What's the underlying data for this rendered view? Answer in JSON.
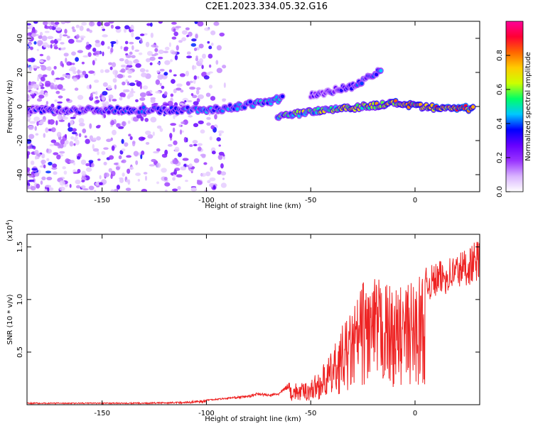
{
  "title": "C2E1.2023.334.05.32.G16",
  "chart_data": [
    {
      "type": "heatmap",
      "xlabel": "Height of straight line (km)",
      "ylabel": "Frequency (Hz)",
      "xlim": [
        -186,
        31
      ],
      "ylim": [
        -50,
        50
      ],
      "x_ticks": [
        -150,
        -100,
        -50,
        0
      ],
      "y_ticks": [
        -40,
        -20,
        0,
        20,
        40
      ],
      "grid": false,
      "colorbar": {
        "label": "Normalized spectral amplitude",
        "range": [
          0,
          1
        ],
        "ticks": [
          "0.0",
          "0.2",
          "0.4",
          "0.6",
          "0.8"
        ],
        "colors": [
          "#ffffff",
          "#d9b3ff",
          "#9933ff",
          "#6600ff",
          "#0000ff",
          "#00c8ff",
          "#00ff66",
          "#ccff00",
          "#ffcc00",
          "#ff6600",
          "#ff0033",
          "#ff0099"
        ]
      },
      "features": [
        {
          "curve": "main",
          "x": [
            -186,
            -140,
            -100,
            -90,
            -80,
            -70,
            -63
          ],
          "y": [
            -2,
            -2,
            -2,
            -1,
            1,
            3,
            5
          ],
          "amplitude": 0.35
        },
        {
          "curve": "lower",
          "x": [
            -66,
            -55,
            -45,
            -35,
            -25,
            -15,
            -8,
            0,
            10,
            20,
            28
          ],
          "y": [
            -6,
            -4,
            -2,
            -1,
            0,
            1,
            2,
            0,
            -1,
            -1,
            -1
          ],
          "amplitude": 0.6
        },
        {
          "curve": "upper",
          "x": [
            -50,
            -40,
            -30,
            -22,
            -16
          ],
          "y": [
            7,
            9,
            12,
            17,
            22
          ],
          "amplitude": 0.3
        }
      ]
    },
    {
      "type": "line",
      "xlabel": "Height of straight line (km)",
      "ylabel": "SNR (10 * v/v)",
      "y_multiplier": "(x10",
      "y_multiplier_exp": "4",
      "y_multiplier_close": ")",
      "xlim": [
        -186,
        31
      ],
      "ylim": [
        0,
        1.62
      ],
      "x_ticks": [
        -150,
        -100,
        -50,
        0
      ],
      "y_ticks": [
        "0.5",
        "1.0",
        "1.5"
      ],
      "grid": false,
      "series": [
        {
          "color": "#ee2222",
          "x": [
            -186,
            -160,
            -130,
            -110,
            -100,
            -90,
            -80,
            -75,
            -70,
            -65,
            -60,
            -55,
            -50,
            -45,
            -40,
            -35,
            -30,
            -25,
            -20,
            -15,
            -10,
            -5,
            0,
            5,
            10,
            15,
            20,
            25,
            31
          ],
          "env": [
            0.02,
            0.02,
            0.02,
            0.03,
            0.05,
            0.07,
            0.09,
            0.12,
            0.1,
            0.12,
            0.22,
            0.2,
            0.24,
            0.35,
            0.5,
            0.75,
            0.9,
            1.2,
            1.2,
            1.2,
            1.1,
            1.15,
            1.2,
            1.3,
            1.35,
            1.4,
            1.45,
            1.5,
            1.58
          ]
        }
      ]
    }
  ]
}
